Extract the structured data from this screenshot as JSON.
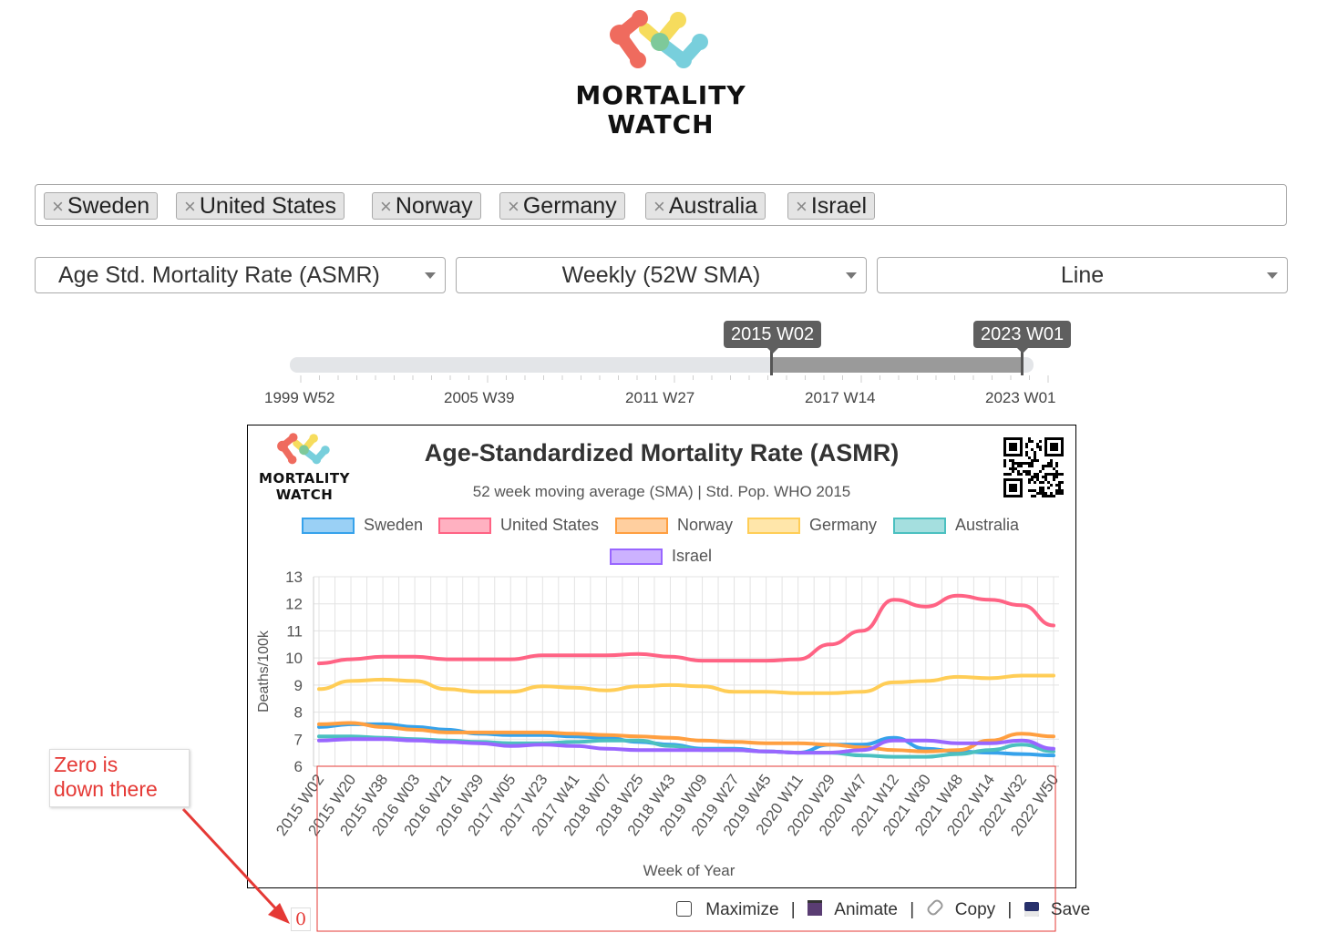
{
  "brand": {
    "line1": "MORTALITY",
    "line2": "WATCH"
  },
  "countries": [
    {
      "label": "Sweden"
    },
    {
      "label": "United States"
    },
    {
      "label": "Norway"
    },
    {
      "label": "Germany"
    },
    {
      "label": "Australia"
    },
    {
      "label": "Israel"
    }
  ],
  "tag_remove_glyph": "×",
  "selects": {
    "metric": "Age Std. Mortality Rate (ASMR)",
    "period": "Weekly (52W SMA)",
    "chart_type": "Line"
  },
  "slider": {
    "from": "2015 W02",
    "to": "2023 W01",
    "ticks": [
      "1999 W52",
      "2005 W39",
      "2011 W27",
      "2017 W14",
      "2023 W01"
    ]
  },
  "toolbar": {
    "maximize": "Maximize",
    "animate": "Animate",
    "copy": "Copy",
    "save": "Save",
    "sep": "|"
  },
  "annotation": {
    "line1": "Zero is",
    "line2": "down there",
    "zero_label": "0",
    "color": "#e53935"
  },
  "colors": {
    "Sweden": "#36a2eb",
    "United States": "#ff6384",
    "Norway": "#ff9f40",
    "Germany": "#ffcd56",
    "Australia": "#4bc0c0",
    "Israel": "#9966ff"
  },
  "chart_data": {
    "type": "line",
    "title": "Age-Standardized Mortality Rate (ASMR)",
    "subtitle": "52 week moving average (SMA) | Std. Pop. WHO 2015",
    "xlabel": "Week of Year",
    "ylabel": "Deaths/100k",
    "ylim": [
      6,
      13
    ],
    "yticks": [
      6,
      7,
      8,
      9,
      10,
      11,
      12,
      13
    ],
    "grid": true,
    "legend_position": "top",
    "x_ticks": [
      "2015 W02",
      "2015 W20",
      "2015 W38",
      "2016 W03",
      "2016 W21",
      "2016 W39",
      "2017 W05",
      "2017 W23",
      "2017 W41",
      "2018 W07",
      "2018 W25",
      "2018 W43",
      "2019 W09",
      "2019 W27",
      "2019 W45",
      "2020 W11",
      "2020 W29",
      "2020 W47",
      "2021 W12",
      "2021 W30",
      "2021 W48",
      "2022 W14",
      "2022 W32",
      "2022 W50"
    ],
    "series": [
      {
        "name": "Sweden",
        "values": [
          7.45,
          7.55,
          7.55,
          7.45,
          7.35,
          7.2,
          7.15,
          7.15,
          7.1,
          7.05,
          6.9,
          6.8,
          6.65,
          6.65,
          6.55,
          6.5,
          6.8,
          6.8,
          7.05,
          6.65,
          6.55,
          6.5,
          6.45,
          6.4
        ]
      },
      {
        "name": "United States",
        "values": [
          9.8,
          9.95,
          10.05,
          10.05,
          9.95,
          9.95,
          9.95,
          10.1,
          10.1,
          10.1,
          10.15,
          10.05,
          9.9,
          9.9,
          9.9,
          9.95,
          10.5,
          11.0,
          12.15,
          11.9,
          12.3,
          12.15,
          11.95,
          11.2
        ]
      },
      {
        "name": "Norway",
        "values": [
          7.55,
          7.6,
          7.45,
          7.35,
          7.25,
          7.25,
          7.25,
          7.25,
          7.2,
          7.15,
          7.1,
          7.05,
          6.95,
          6.9,
          6.85,
          6.85,
          6.8,
          6.7,
          6.6,
          6.55,
          6.6,
          6.95,
          7.2,
          7.1
        ]
      },
      {
        "name": "Germany",
        "values": [
          8.85,
          9.15,
          9.2,
          9.15,
          8.85,
          8.75,
          8.75,
          8.95,
          8.9,
          8.8,
          8.95,
          9.0,
          8.95,
          8.75,
          8.75,
          8.7,
          8.7,
          8.75,
          9.1,
          9.15,
          9.3,
          9.25,
          9.35,
          9.35
        ]
      },
      {
        "name": "Australia",
        "values": [
          7.1,
          7.1,
          7.05,
          7.0,
          6.95,
          6.9,
          6.85,
          6.85,
          6.9,
          6.95,
          6.95,
          6.75,
          6.6,
          6.6,
          6.55,
          6.5,
          6.5,
          6.4,
          6.35,
          6.35,
          6.45,
          6.6,
          6.8,
          6.55
        ]
      },
      {
        "name": "Israel",
        "values": [
          6.95,
          7.0,
          7.0,
          6.95,
          6.9,
          6.85,
          6.75,
          6.8,
          6.75,
          6.65,
          6.6,
          6.6,
          6.6,
          6.6,
          6.55,
          6.5,
          6.5,
          6.6,
          6.95,
          6.95,
          6.85,
          6.85,
          6.95,
          6.65
        ]
      }
    ]
  }
}
